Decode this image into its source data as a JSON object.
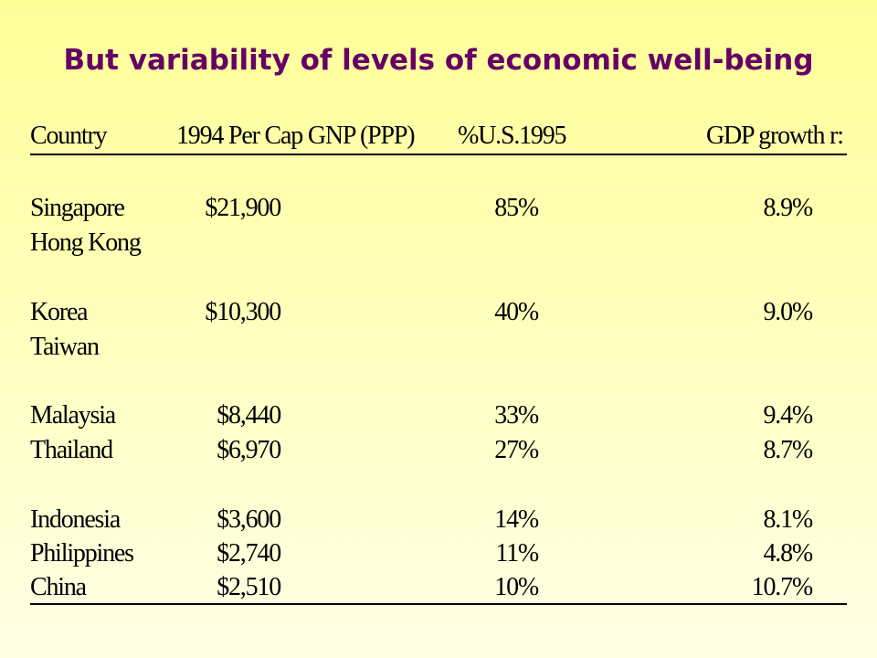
{
  "title": "But variability of levels of economic well-being",
  "table": {
    "headers": {
      "country": "Country",
      "gnp": "1994 Per Cap GNP (PPP)",
      "pct_us": "%U.S.1995",
      "gdp_growth": "GDP growth r:"
    },
    "rows": [
      {
        "country": "Singapore",
        "gnp": "$21,900",
        "pct_us": "85%",
        "gdp_growth": "8.9%"
      },
      {
        "country": "Hong Kong",
        "gnp": "",
        "pct_us": "",
        "gdp_growth": ""
      },
      {
        "country": "Korea",
        "gnp": "$10,300",
        "pct_us": "40%",
        "gdp_growth": "9.0%"
      },
      {
        "country": "Taiwan",
        "gnp": "",
        "pct_us": "",
        "gdp_growth": ""
      },
      {
        "country": "Malaysia",
        "gnp": "$8,440",
        "pct_us": "33%",
        "gdp_growth": "9.4%"
      },
      {
        "country": "Thailand",
        "gnp": "$6,970",
        "pct_us": "27%",
        "gdp_growth": "8.7%"
      },
      {
        "country": "Indonesia",
        "gnp": "$3,600",
        "pct_us": "14%",
        "gdp_growth": "8.1%"
      },
      {
        "country": "Philippines",
        "gnp": "$2,740",
        "pct_us": "11%",
        "gdp_growth": "4.8%"
      },
      {
        "country": "China",
        "gnp": "$2,510",
        "pct_us": "10%",
        "gdp_growth": "10.7%"
      }
    ]
  },
  "colors": {
    "title": "#660066",
    "background_top": "#FFFF99",
    "background_bottom": "#FFFFE6",
    "text": "#000000"
  }
}
